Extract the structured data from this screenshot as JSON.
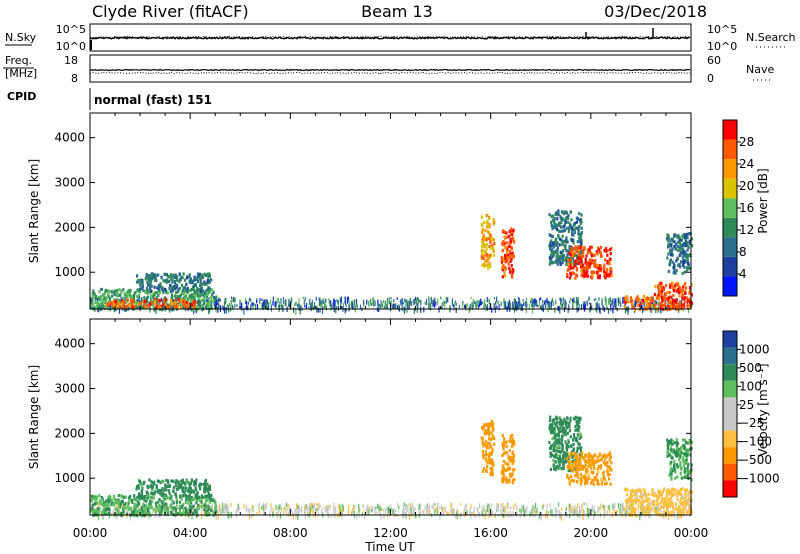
{
  "header": {
    "title": "Clyde River (fitACF)",
    "beam": "Beam 13",
    "date": "03/Dec/2018"
  },
  "noise_panel": {
    "left_label": "N.Sky",
    "left_ticks": [
      "10^5",
      "10^0"
    ],
    "right_label": "N.Search",
    "right_ticks": [
      "10^5",
      "10^0"
    ]
  },
  "freq_panel": {
    "left_label_1": "Freq.",
    "left_label_2": "[MHz]",
    "left_ticks": [
      "18",
      "8"
    ],
    "right_label": "Nave",
    "right_ticks": [
      "60",
      "0"
    ]
  },
  "cpid": {
    "label": "CPID",
    "value": "normal (fast) 151"
  },
  "colors": {
    "power_scale": [
      "#0015ff",
      "#1f3f9e",
      "#2b6e8e",
      "#2e8b57",
      "#5fbf5f",
      "#d8c400",
      "#ff9900",
      "#ff5a00",
      "#ff0000"
    ],
    "velocity_scale": [
      "#ff0000",
      "#ff5a00",
      "#ff9900",
      "#ffc040",
      "#c8c8c8",
      "#c8c8c8",
      "#5fbf5f",
      "#2e8b57",
      "#2b6e8e",
      "#1f3f9e"
    ]
  },
  "chart_data": [
    {
      "type": "heatmap",
      "name": "Power",
      "xlabel": "",
      "ylabel": "Slant Range [km]",
      "ylim": [
        180,
        4550
      ],
      "y_ticks": [
        1000,
        2000,
        3000,
        4000
      ],
      "x_ticks": [
        "00:00",
        "04:00",
        "08:00",
        "12:00",
        "16:00",
        "20:00",
        "00:00"
      ],
      "colorbar_label": "Power [dB]",
      "colorbar_ticks": [
        "4",
        "8",
        "12",
        "16",
        "20",
        "24",
        "28"
      ],
      "colorbar_range": [
        0,
        32
      ],
      "regions": [
        {
          "t0": 0.0,
          "t1": 5.0,
          "r0": 200,
          "r1": 650,
          "value": 14
        },
        {
          "t0": 0.6,
          "t1": 4.2,
          "r0": 240,
          "r1": 430,
          "value": 27
        },
        {
          "t0": 1.8,
          "t1": 4.8,
          "r0": 600,
          "r1": 1000,
          "value": 10
        },
        {
          "t0": 15.6,
          "t1": 16.1,
          "r0": 1100,
          "r1": 2300,
          "value": 22
        },
        {
          "t0": 16.4,
          "t1": 16.9,
          "r0": 900,
          "r1": 2000,
          "value": 27
        },
        {
          "t0": 18.3,
          "t1": 19.6,
          "r0": 1200,
          "r1": 2400,
          "value": 10
        },
        {
          "t0": 19.0,
          "t1": 20.8,
          "r0": 900,
          "r1": 1600,
          "value": 28
        },
        {
          "t0": 21.3,
          "t1": 22.5,
          "r0": 200,
          "r1": 500,
          "value": 26
        },
        {
          "t0": 22.5,
          "t1": 24.0,
          "r0": 200,
          "r1": 800,
          "value": 28
        },
        {
          "t0": 23.0,
          "t1": 24.0,
          "r0": 1000,
          "r1": 1900,
          "value": 10
        }
      ]
    },
    {
      "type": "heatmap",
      "name": "Velocity",
      "xlabel": "Time UT",
      "ylabel": "Slant Range [km]",
      "ylim": [
        180,
        4550
      ],
      "y_ticks": [
        1000,
        2000,
        3000,
        4000
      ],
      "x_ticks": [
        "00:00",
        "04:00",
        "08:00",
        "12:00",
        "16:00",
        "20:00",
        "00:00"
      ],
      "colorbar_label": "Velocity [m s⁻¹]",
      "colorbar_ticks": [
        "1000",
        "500",
        "100",
        "25",
        "−25",
        "−100",
        "−500",
        "−1000"
      ],
      "regions": [
        {
          "t0": 0.0,
          "t1": 5.0,
          "r0": 200,
          "r1": 650,
          "value": 100
        },
        {
          "t0": 1.8,
          "t1": 4.8,
          "r0": 600,
          "r1": 1000,
          "value": 150
        },
        {
          "t0": 15.6,
          "t1": 16.1,
          "r0": 1100,
          "r1": 2300,
          "value": -200
        },
        {
          "t0": 16.4,
          "t1": 16.9,
          "r0": 900,
          "r1": 2000,
          "value": -300
        },
        {
          "t0": 18.3,
          "t1": 19.6,
          "r0": 1200,
          "r1": 2400,
          "value": 150
        },
        {
          "t0": 19.0,
          "t1": 20.8,
          "r0": 900,
          "r1": 1600,
          "value": -150
        },
        {
          "t0": 21.3,
          "t1": 24.0,
          "r0": 200,
          "r1": 800,
          "value": -50
        },
        {
          "t0": 23.0,
          "t1": 24.0,
          "r0": 1000,
          "r1": 1900,
          "value": 100
        }
      ]
    }
  ]
}
